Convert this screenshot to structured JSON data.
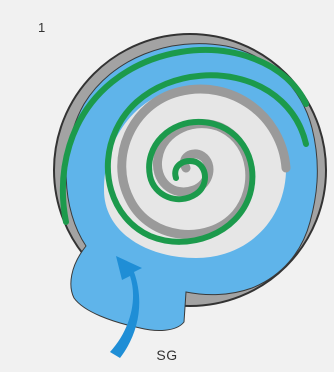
{
  "figure": {
    "panel_number": "1",
    "inlet_label": "SG"
  },
  "colors": {
    "background": "#f1f1f1",
    "housing": "#a3a3a3",
    "housing_outline": "#333333",
    "gas_pocket": "#5fb4ea",
    "orbiting_scroll": "#1c9a4c",
    "fixed_scroll": "#a8a8a8",
    "inner_gap": "#e6e6e6",
    "flow_arrow": "#1f8ed6",
    "text": "#333333"
  },
  "icons": {
    "inlet": "arrow-up-right-icon"
  }
}
